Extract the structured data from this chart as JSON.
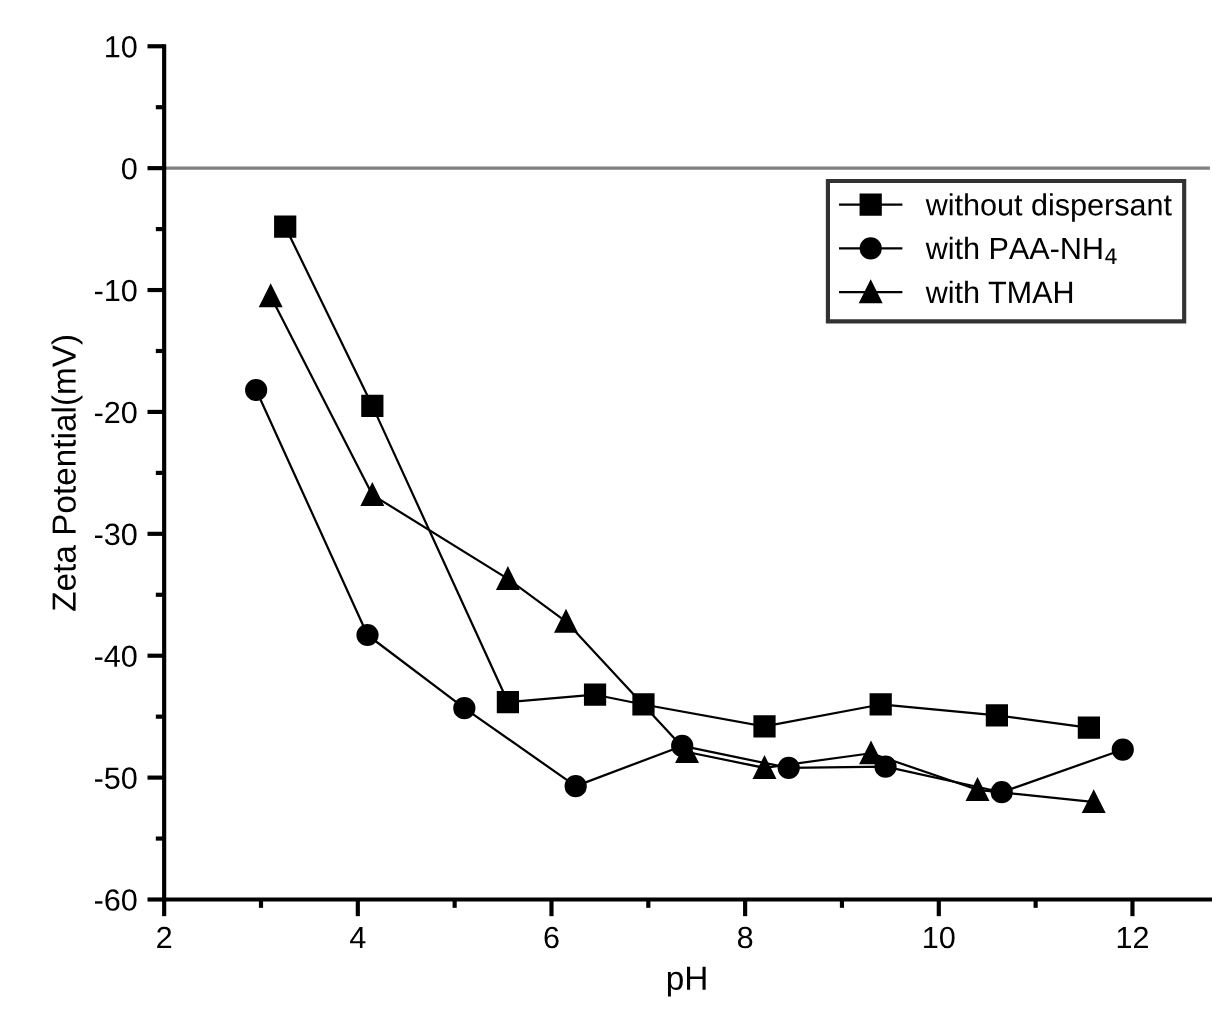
{
  "chart_data": {
    "type": "line",
    "xlabel": "pH",
    "ylabel": "Zeta Potential(mV)",
    "xlim": [
      2,
      12.8
    ],
    "xticks": [
      2,
      4,
      6,
      8,
      10,
      12
    ],
    "ylim": [
      -60,
      10
    ],
    "yticks": [
      -60,
      -50,
      -40,
      -30,
      -20,
      -10,
      0,
      10
    ],
    "grid": false,
    "legend": "top right",
    "ref_lines": [
      {
        "axis": "y",
        "value": 0,
        "color": "#808080"
      }
    ],
    "series": [
      {
        "name": "without dispersant",
        "color": "#000000",
        "marker": "square",
        "line_style": "solid",
        "x": [
          3.25,
          4.15,
          5.55,
          6.45,
          6.95,
          8.2,
          9.4,
          10.6,
          11.55
        ],
        "values": [
          -4.8,
          -19.5,
          -43.8,
          -43.2,
          -44,
          -45.8,
          -44,
          -44.9,
          -45.9
        ]
      },
      {
        "name": "with PAA-NH$_{4}$",
        "color": "#000000",
        "marker": "circle",
        "line_style": "solid",
        "x": [
          2.95,
          4.1,
          5.1,
          6.25,
          7.35,
          8.45,
          9.45,
          10.65,
          11.9
        ],
        "values": [
          -18.2,
          -38.3,
          -44.3,
          -50.7,
          -47.4,
          -49.2,
          -49.1,
          -51.2,
          -47.7
        ]
      },
      {
        "name": "with TMAH",
        "color": "#000000",
        "marker": "triangle",
        "line_style": "solid",
        "x": [
          3.1,
          4.15,
          5.55,
          6.15,
          7.4,
          8.2,
          9.3,
          10.4,
          11.6
        ],
        "values": [
          -10.5,
          -26.8,
          -33.7,
          -37.2,
          -47.9,
          -49.2,
          -48,
          -51,
          -52
        ]
      }
    ]
  }
}
